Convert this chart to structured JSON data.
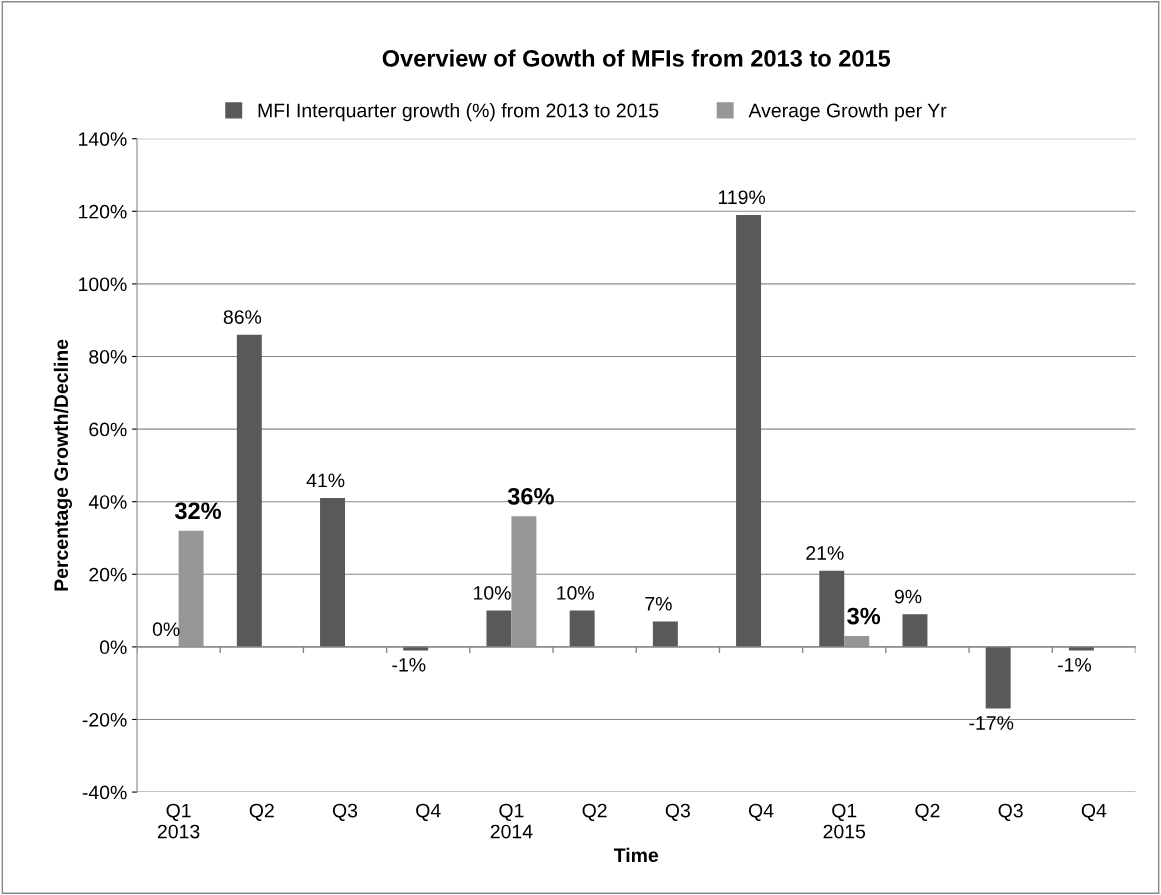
{
  "chart_data": {
    "type": "bar",
    "title": "Overview of Gowth of MFIs from 2013 to 2015",
    "xlabel": "Time",
    "ylabel": "Percentage Growth/Decline",
    "categories": [
      "Q1\n2013",
      "Q2",
      "Q3",
      "Q4",
      "Q1\n2014",
      "Q2",
      "Q3",
      "Q4",
      "Q1\n2015",
      "Q2",
      "Q3",
      "Q4"
    ],
    "series": [
      {
        "name": "MFI Interquarter growth (%) from 2013 to 2015",
        "color": "#595959",
        "values": [
          0,
          86,
          41,
          -1,
          10,
          10,
          7,
          119,
          21,
          9,
          -17,
          -1
        ],
        "value_labels": [
          "0%",
          "86%",
          "41%",
          "-1%",
          "10%",
          "10%",
          "7%",
          "119%",
          "21%",
          "9%",
          "-17%",
          "-1%"
        ]
      },
      {
        "name": "Average Growth per Yr",
        "color": "#969696",
        "values": [
          32,
          null,
          null,
          null,
          36,
          null,
          null,
          null,
          3,
          null,
          null,
          null
        ],
        "value_labels": [
          "32%",
          null,
          null,
          null,
          "36%",
          null,
          null,
          null,
          "3%",
          null,
          null,
          null
        ]
      }
    ],
    "ylim": [
      -40,
      140
    ],
    "yticks": [
      {
        "value": -40,
        "label": "-40%"
      },
      {
        "value": -20,
        "label": "-20%"
      },
      {
        "value": 0,
        "label": "0%"
      },
      {
        "value": 20,
        "label": "20%"
      },
      {
        "value": 40,
        "label": "40%"
      },
      {
        "value": 60,
        "label": "60%"
      },
      {
        "value": 80,
        "label": "80%"
      },
      {
        "value": 100,
        "label": "100%"
      },
      {
        "value": 120,
        "label": "120%"
      },
      {
        "value": 140,
        "label": "140%"
      }
    ],
    "grid": "y",
    "legend": "top"
  }
}
